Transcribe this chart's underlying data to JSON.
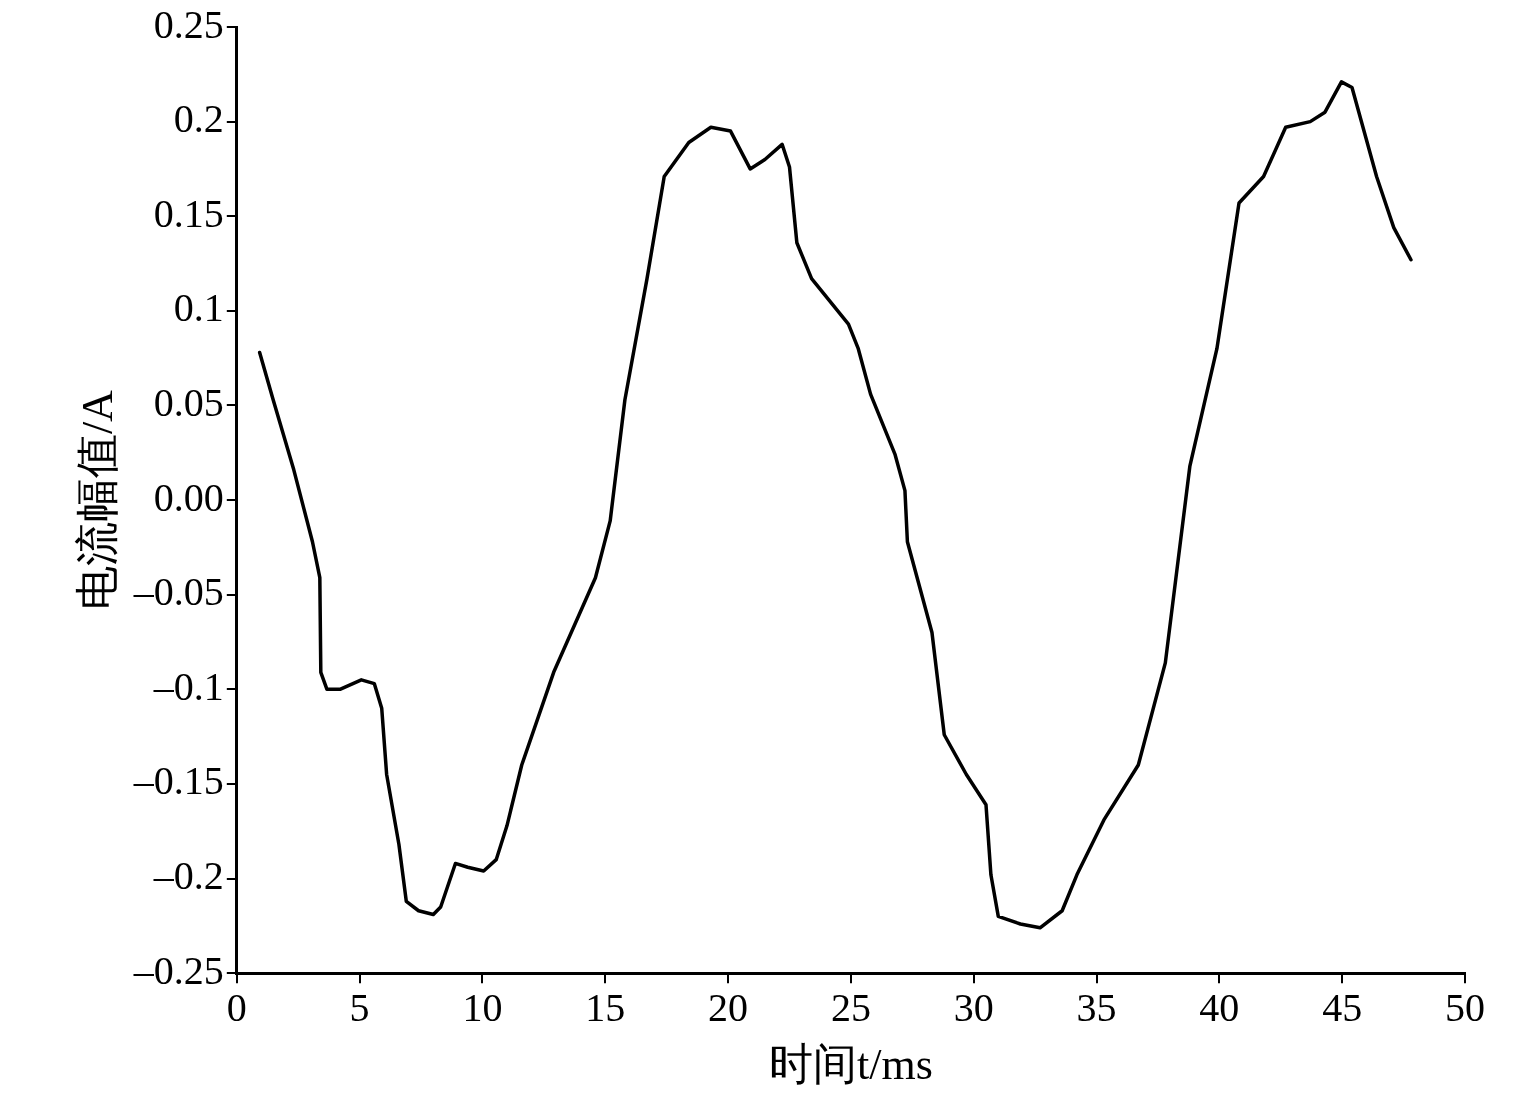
{
  "chart_data": {
    "type": "line",
    "xlabel": "时间t/ms",
    "ylabel": "电流幅值/A",
    "xlim": [
      0,
      50
    ],
    "xticks": [
      0,
      5,
      10,
      15,
      20,
      25,
      30,
      35,
      40,
      45,
      50
    ],
    "ylim": [
      -0.25,
      0.25
    ],
    "yticks": [
      {
        "value": -0.25,
        "label": "–0.25"
      },
      {
        "value": -0.2,
        "label": "–0.2"
      },
      {
        "value": -0.15,
        "label": "–0.15"
      },
      {
        "value": -0.1,
        "label": "–0.1"
      },
      {
        "value": -0.05,
        "label": "–0.05"
      },
      {
        "value": 0,
        "label": "0.00"
      },
      0.05,
      0.1,
      0.15,
      0.2,
      0.25
    ],
    "grid": false,
    "legend": false,
    "marker": "none",
    "line_style": "solid",
    "series": [
      {
        "color": "#000000",
        "x": [
          0.93,
          1.48,
          2.32,
          3.08,
          3.38,
          3.42,
          3.67,
          4.2,
          5.07,
          5.6,
          5.9,
          6.1,
          6.6,
          6.9,
          7.4,
          8.0,
          8.3,
          8.9,
          9.4,
          10.05,
          10.56,
          11.0,
          11.6,
          12.9,
          14.6,
          15.2,
          15.8,
          16.7,
          17.4,
          18.4,
          19.3,
          20.1,
          20.9,
          21.5,
          22.2,
          22.5,
          22.8,
          23.4,
          24.9,
          25.3,
          25.8,
          26.8,
          27.2,
          27.3,
          28.3,
          28.8,
          29.7,
          30.5,
          30.7,
          31.0,
          31.9,
          32.7,
          33.6,
          34.2,
          35.3,
          36.7,
          37.8,
          38.8,
          39.9,
          40.8,
          41.8,
          42.7,
          43.7,
          44.3,
          44.97,
          45.4,
          46.4,
          47.1,
          47.8
        ],
        "values": [
          0.078,
          0.053,
          0.016,
          -0.022,
          -0.041,
          -0.091,
          -0.1,
          -0.1,
          -0.095,
          -0.097,
          -0.11,
          -0.145,
          -0.182,
          -0.212,
          -0.217,
          -0.219,
          -0.215,
          -0.192,
          -0.194,
          -0.196,
          -0.19,
          -0.172,
          -0.14,
          -0.091,
          -0.041,
          -0.011,
          0.053,
          0.117,
          0.171,
          0.189,
          0.197,
          0.195,
          0.175,
          0.18,
          0.188,
          0.176,
          0.136,
          0.117,
          0.093,
          0.08,
          0.056,
          0.024,
          0.005,
          -0.022,
          -0.07,
          -0.124,
          -0.145,
          -0.161,
          -0.198,
          -0.22,
          -0.224,
          -0.226,
          -0.217,
          -0.198,
          -0.169,
          -0.14,
          -0.086,
          0.018,
          0.08,
          0.157,
          0.171,
          0.197,
          0.2,
          0.205,
          0.221,
          0.218,
          0.171,
          0.144,
          0.127
        ]
      }
    ]
  }
}
